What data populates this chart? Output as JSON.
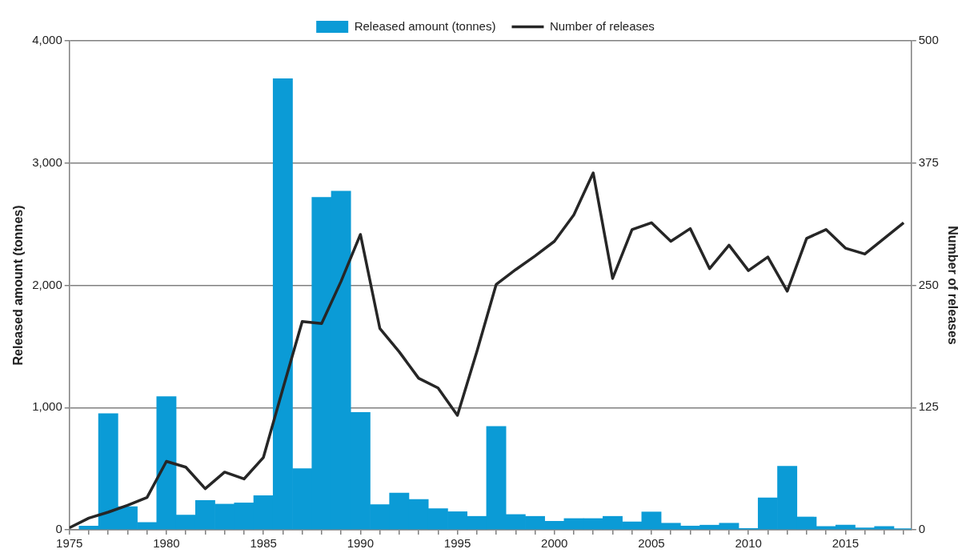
{
  "chart_data": {
    "type": "bar",
    "xlabel": null,
    "ylabel": "Released amount (tonnes)",
    "y2label": "Number of releases",
    "x": [
      1975,
      1976,
      1977,
      1978,
      1979,
      1980,
      1981,
      1982,
      1983,
      1984,
      1985,
      1986,
      1987,
      1988,
      1989,
      1990,
      1991,
      1992,
      1993,
      1994,
      1995,
      1996,
      1997,
      1998,
      1999,
      2000,
      2001,
      2002,
      2003,
      2004,
      2005,
      2006,
      2007,
      2008,
      2009,
      2010,
      2011,
      2012,
      2013,
      2014,
      2015,
      2016,
      2017,
      2018
    ],
    "series": [
      {
        "name": "Released amount (tonnes)",
        "color": "#0b9bd6",
        "values": [
          null,
          30,
          950,
          190,
          60,
          1090,
          120,
          240,
          210,
          220,
          280,
          3690,
          500,
          2720,
          2770,
          960,
          206,
          300,
          249,
          173,
          148,
          110,
          845,
          125,
          110,
          70,
          92,
          92,
          110,
          65,
          146,
          54,
          31,
          38,
          54,
          11,
          262,
          520,
          105,
          27,
          38,
          16,
          27,
          9
        ]
      },
      {
        "name": "Number of releases",
        "type": "line",
        "axis": "y2",
        "color": "#262626",
        "values": [
          2,
          12,
          18,
          25,
          33,
          70,
          64,
          42,
          59,
          52,
          74,
          144,
          213,
          211,
          254,
          302,
          206,
          182,
          155,
          145,
          117,
          182,
          251,
          266,
          280,
          295,
          322,
          365,
          257,
          307,
          314,
          295,
          308,
          267,
          291,
          265,
          279,
          244,
          298,
          307,
          288,
          282,
          298,
          314
        ]
      }
    ],
    "xlim": [
      1975,
      2018.4
    ],
    "xticks": [
      1975,
      {
        "value": 1976,
        "label": null
      },
      {
        "value": 1977,
        "label": null
      },
      {
        "value": 1978,
        "label": null
      },
      {
        "value": 1979,
        "label": null
      },
      1980,
      {
        "value": 1981,
        "label": null
      },
      {
        "value": 1982,
        "label": null
      },
      {
        "value": 1983,
        "label": null
      },
      {
        "value": 1984,
        "label": null
      },
      1985,
      {
        "value": 1986,
        "label": null
      },
      {
        "value": 1987,
        "label": null
      },
      {
        "value": 1988,
        "label": null
      },
      {
        "value": 1989,
        "label": null
      },
      1990,
      {
        "value": 1991,
        "label": null
      },
      {
        "value": 1992,
        "label": null
      },
      {
        "value": 1993,
        "label": null
      },
      {
        "value": 1994,
        "label": null
      },
      1995,
      {
        "value": 1996,
        "label": null
      },
      {
        "value": 1997,
        "label": null
      },
      {
        "value": 1998,
        "label": null
      },
      {
        "value": 1999,
        "label": null
      },
      2000,
      {
        "value": 2001,
        "label": null
      },
      {
        "value": 2002,
        "label": null
      },
      {
        "value": 2003,
        "label": null
      },
      {
        "value": 2004,
        "label": null
      },
      2005,
      {
        "value": 2006,
        "label": null
      },
      {
        "value": 2007,
        "label": null
      },
      {
        "value": 2008,
        "label": null
      },
      {
        "value": 2009,
        "label": null
      },
      2010,
      {
        "value": 2011,
        "label": null
      },
      {
        "value": 2012,
        "label": null
      },
      {
        "value": 2013,
        "label": null
      },
      {
        "value": 2014,
        "label": null
      },
      2015,
      {
        "value": 2016,
        "label": null
      },
      {
        "value": 2017,
        "label": null
      },
      {
        "value": 2018,
        "label": null
      }
    ],
    "ylim": [
      0,
      4000
    ],
    "yticks": [
      0,
      {
        "value": 1000,
        "label": "1,000"
      },
      {
        "value": 2000,
        "label": "2,000"
      },
      {
        "value": 3000,
        "label": "3,000"
      },
      {
        "value": 4000,
        "label": "4,000"
      }
    ],
    "y2lim": [
      0,
      500
    ],
    "y2ticks": [
      0,
      125,
      250,
      375,
      500
    ],
    "grid": "y",
    "legend": "top",
    "marker": "none",
    "line_style": "solid"
  }
}
